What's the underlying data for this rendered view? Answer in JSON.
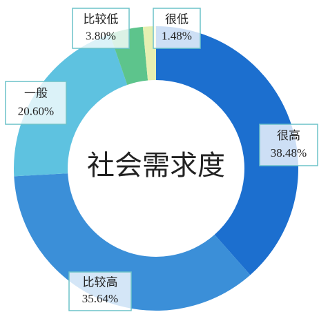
{
  "chart_data": {
    "type": "donut",
    "title": "社会需求度",
    "categories": [
      "很高",
      "比较高",
      "一般",
      "比较低",
      "很低"
    ],
    "values": [
      38.48,
      35.64,
      20.6,
      3.8,
      1.48
    ],
    "value_labels": [
      "38.48%",
      "35.64%",
      "20.60%",
      "3.80%",
      "1.48%"
    ],
    "colors": [
      "#1c6fcf",
      "#3b8fd8",
      "#5ec2e0",
      "#5dc48c",
      "#e6efb2"
    ]
  }
}
